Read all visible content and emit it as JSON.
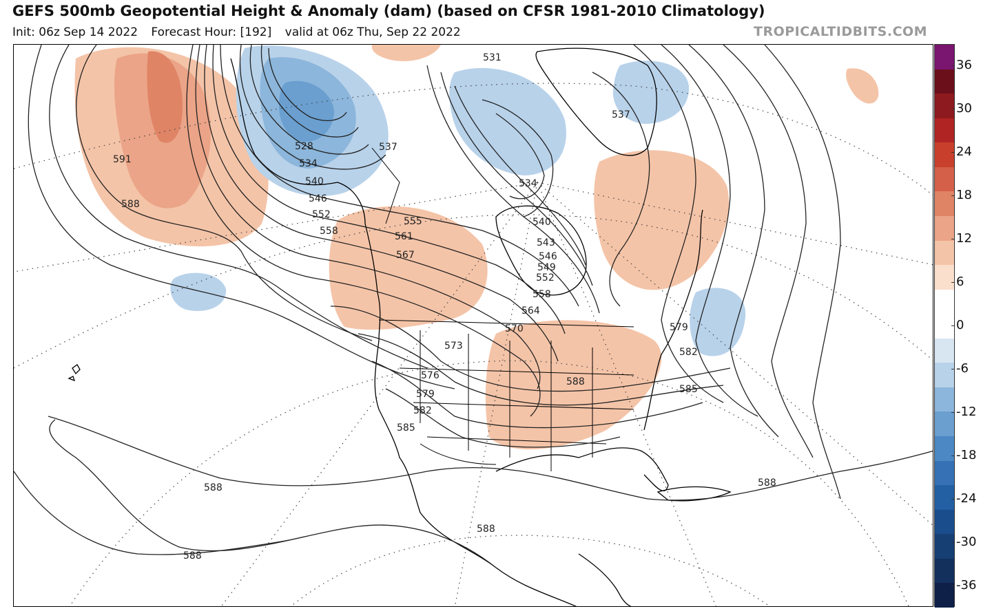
{
  "header": {
    "title": "GEFS 500mb Geopotential Height & Anomaly (dam) (based on CFSR 1981-2010 Climatology)",
    "init": "Init: 06z Sep 14 2022",
    "forecast_hour": "Forecast Hour: [192]",
    "valid": "valid at 06z Thu, Sep 22 2022",
    "brand": "TROPICALTIDBITS.COM"
  },
  "colorbar": {
    "ticks": [
      "36",
      "30",
      "24",
      "18",
      "12",
      "6",
      "0",
      "-6",
      "-12",
      "-18",
      "-24",
      "-30",
      "-36"
    ],
    "colors": [
      "#7a1570",
      "#6b0f1a",
      "#8d1a1f",
      "#b02424",
      "#c8402c",
      "#d4604a",
      "#e08466",
      "#eba487",
      "#f4c4a8",
      "#fadfcd",
      "#ffffff",
      "#ffffff",
      "#d8e6f2",
      "#b8d2ea",
      "#8cb6db",
      "#6a9fd0",
      "#4b88c4",
      "#3571b4",
      "#235fa3",
      "#1a4d8c",
      "#163f74",
      "#13305d",
      "#0f2048"
    ]
  },
  "contour_labels": [
    "591",
    "588",
    "528",
    "534",
    "540",
    "546",
    "552",
    "558",
    "537",
    "531",
    "537",
    "534",
    "555",
    "561",
    "567",
    "540",
    "543",
    "546",
    "549",
    "552",
    "558",
    "564",
    "570",
    "573",
    "576",
    "579",
    "582",
    "585",
    "588",
    "579",
    "582",
    "585",
    "588",
    "588",
    "588",
    "588"
  ]
}
